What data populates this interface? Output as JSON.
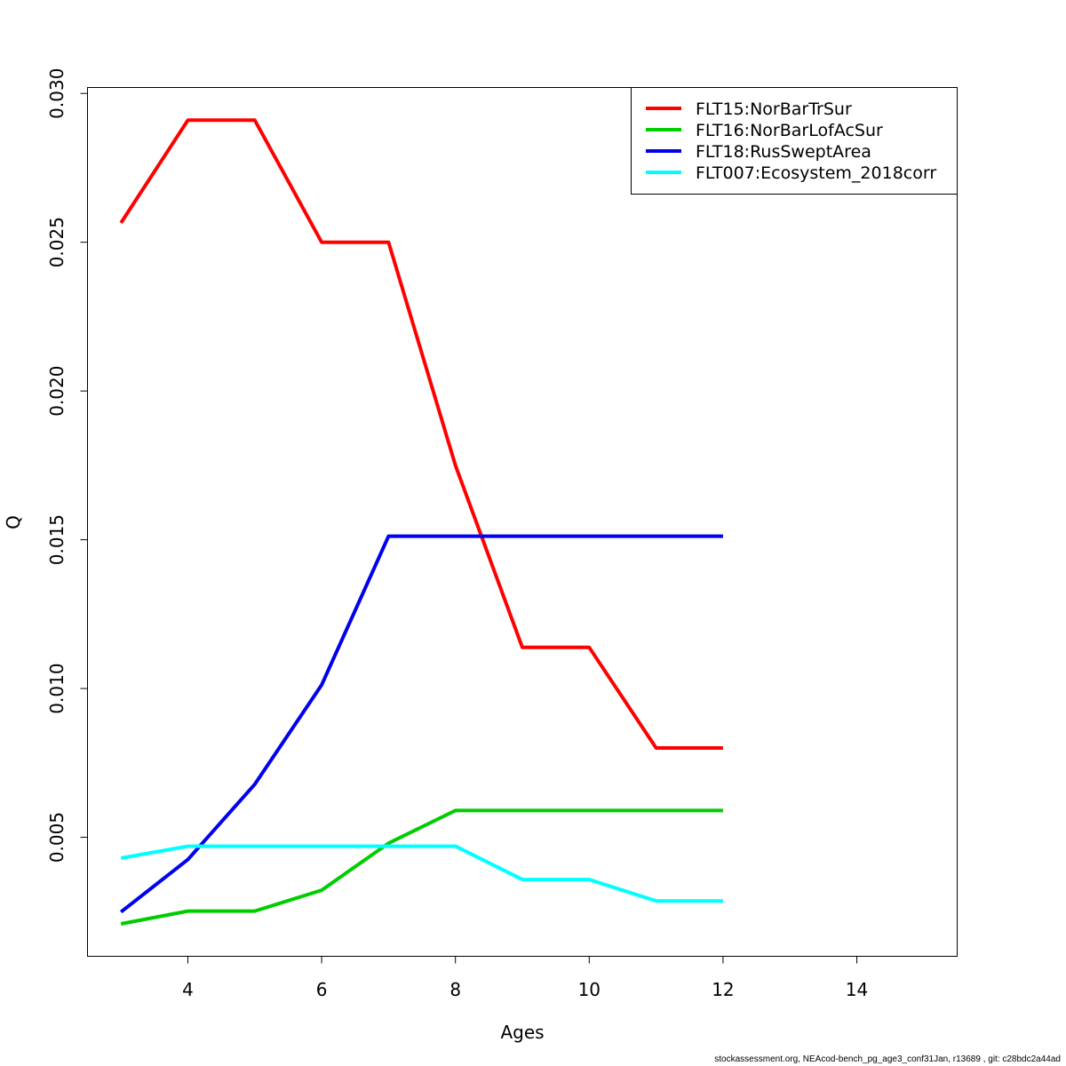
{
  "chart_data": {
    "type": "line",
    "title": "",
    "xlabel": "Ages",
    "ylabel": "Q",
    "xlim": [
      2.5,
      15.5
    ],
    "ylim": [
      0.001,
      0.0302
    ],
    "xticks": [
      4,
      6,
      8,
      10,
      12,
      14
    ],
    "xtick_labels": [
      "4",
      "6",
      "8",
      "10",
      "12",
      "14"
    ],
    "yticks": [
      0.005,
      0.01,
      0.015,
      0.02,
      0.025,
      0.03
    ],
    "ytick_labels": [
      "0.005",
      "0.010",
      "0.015",
      "0.020",
      "0.025",
      "0.030"
    ],
    "grid": false,
    "legend_position": "top-right",
    "x": [
      3,
      4,
      5,
      6,
      7,
      8,
      9,
      10,
      11,
      12
    ],
    "series": [
      {
        "name": "FLT15:NorBarTrSur",
        "color": "#ff0000",
        "values": [
          0.02565,
          0.0291,
          0.0291,
          0.025,
          0.025,
          0.0175,
          0.01138,
          0.01138,
          0.008,
          0.008
        ]
      },
      {
        "name": "FLT16:NorBarLofAcSur",
        "color": "#00cd00",
        "values": [
          0.00209,
          0.00252,
          0.00252,
          0.00322,
          0.0048,
          0.0059,
          0.0059,
          0.0059,
          0.0059,
          0.0059
        ]
      },
      {
        "name": "FLT18:RusSweptArea",
        "color": "#0000ee",
        "values": [
          0.00249,
          0.00425,
          0.00678,
          0.01012,
          0.01512,
          0.01512,
          0.01512,
          0.01512,
          0.01512,
          0.01512
        ]
      },
      {
        "name": "FLT007:Ecosystem_2018corr",
        "color": "#00ffff",
        "values": [
          0.0043,
          0.0047,
          0.0047,
          0.0047,
          0.0047,
          0.0047,
          0.00358,
          0.00358,
          0.00286,
          0.00286
        ]
      }
    ]
  },
  "footer_text": "stockassessment.org, NEAcod-bench_pg_age3_conf31Jan, r13689 , git: c28bdc2a44ad"
}
